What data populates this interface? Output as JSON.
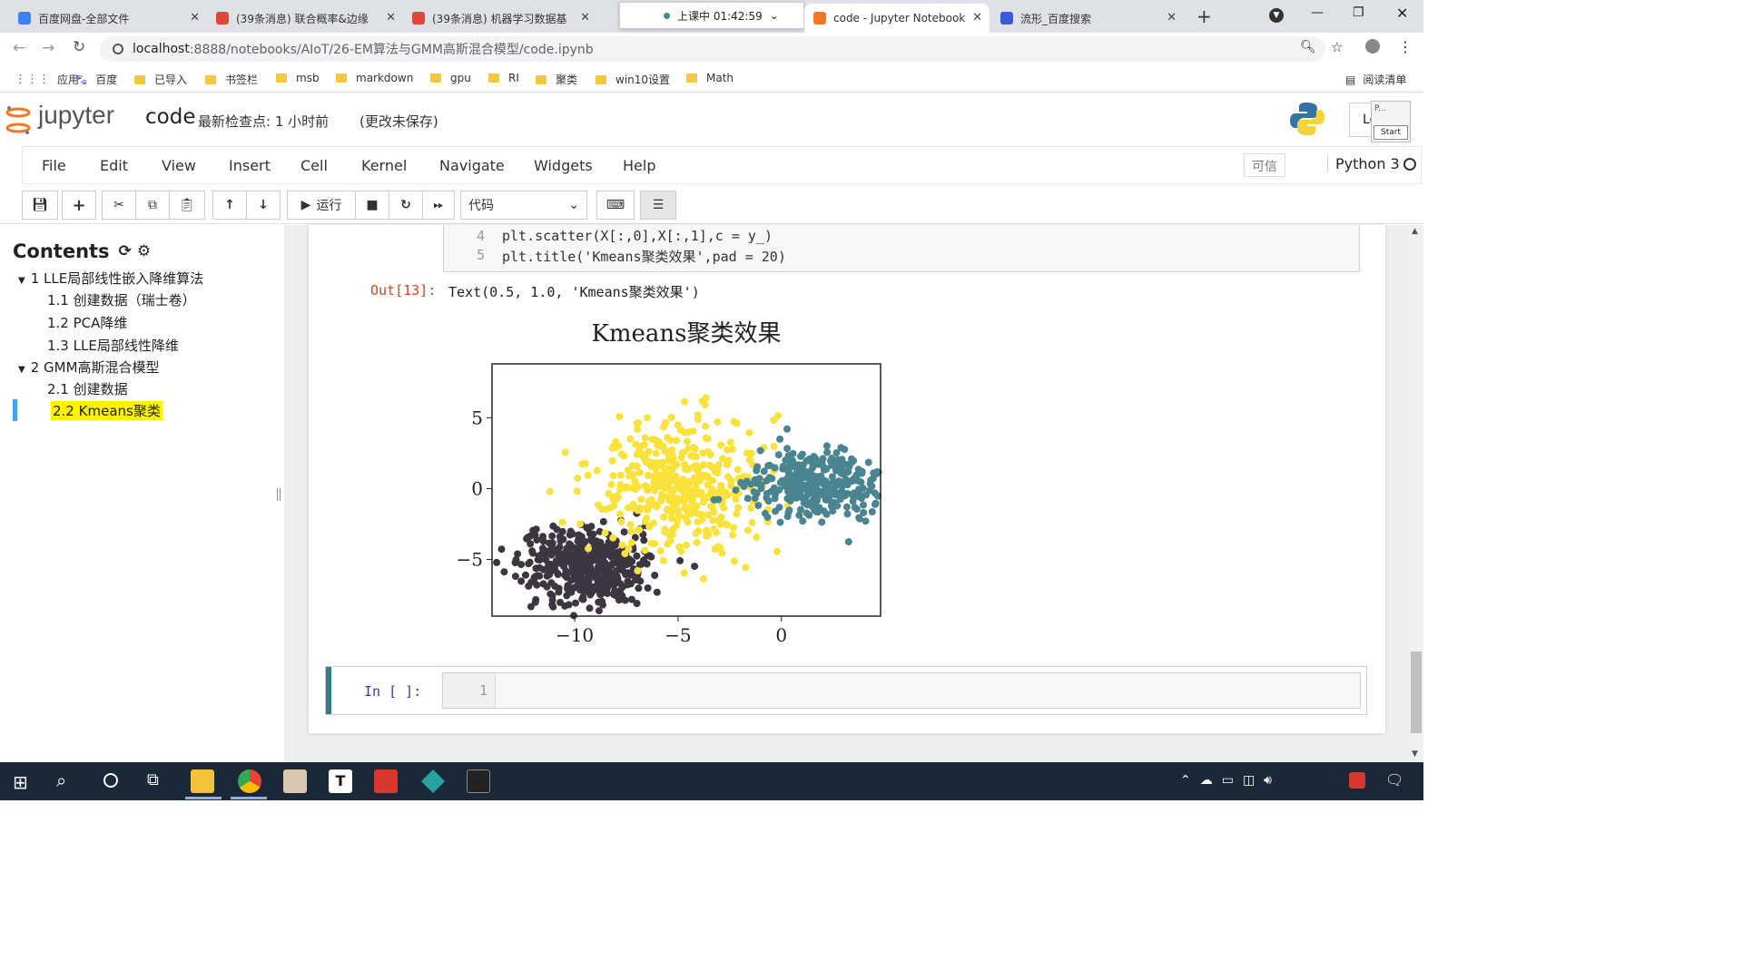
{
  "browser": {
    "tabs": [
      {
        "title": "百度网盘-全部文件",
        "color": "#3b82f6"
      },
      {
        "title": "(39条消息) 联合概率&边缘",
        "color": "#e0473a"
      },
      {
        "title": "(39条消息) 机器学习数据基",
        "color": "#e0473a"
      },
      {
        "title": "code - Jupyter Notebook",
        "color": "#f37726"
      },
      {
        "title": "流形_百度搜索",
        "color": "#3b5bdb"
      }
    ],
    "popup": "上课中 01:42:59",
    "url_host": "localhost",
    "url_path": ":8888/notebooks/AIoT/26-EM算法与GMM高斯混合模型/code.ipynb",
    "new_tab": "+",
    "bookmarks": [
      "应用",
      "百度",
      "已导入",
      "书签栏",
      "msb",
      "markdown",
      "gpu",
      "RI",
      "聚类",
      "win10设置",
      "Math"
    ],
    "reading_list": "阅读清单"
  },
  "jupyter": {
    "logo": "jupyter",
    "notebook_name": "code",
    "checkpoint": "最新检查点: 1 小时前",
    "unsaved": "(更改未保存)",
    "menu": [
      "File",
      "Edit",
      "View",
      "Insert",
      "Cell",
      "Kernel",
      "Navigate",
      "Widgets",
      "Help"
    ],
    "trusted": "可信",
    "kernel": "Python 3",
    "run_label": "运行",
    "cell_type": "代码",
    "logout_stub": "Lo",
    "start_label": "Start",
    "p_label": "P..."
  },
  "toc": {
    "title": "Contents",
    "items": [
      {
        "num": "1",
        "label": "LLE局部线性嵌入降维算法",
        "level": 1
      },
      {
        "num": "1.1",
        "label": "创建数据（瑞士卷）",
        "level": 2
      },
      {
        "num": "1.2",
        "label": "PCA降维",
        "level": 2
      },
      {
        "num": "1.3",
        "label": "LLE局部线性降维",
        "level": 2
      },
      {
        "num": "2",
        "label": "GMM高斯混合模型",
        "level": 1
      },
      {
        "num": "2.1",
        "label": "创建数据",
        "level": 2
      },
      {
        "num": "2.2",
        "label": "Kmeans聚类",
        "level": 2
      }
    ]
  },
  "cell": {
    "lines": [
      {
        "n": "4",
        "code": "plt.scatter(X[:,0],X[:,1],c = y_)"
      },
      {
        "n": "5",
        "code": "plt.title('Kmeans聚类效果',pad = 20)"
      }
    ],
    "out_prompt": "Out[13]:",
    "out_text": "Text(0.5, 1.0, 'Kmeans聚类效果')",
    "empty_prompt": "In [ ]:",
    "empty_line": "1"
  },
  "chart_data": {
    "type": "scatter",
    "title": "Kmeans聚类效果",
    "xlim": [
      -14,
      4.8
    ],
    "ylim": [
      -9,
      8.8
    ],
    "xticks": [
      "−10",
      "−5",
      "0"
    ],
    "yticks": [
      "5",
      "0",
      "−5"
    ],
    "xtick_values": [
      -10,
      -5,
      0
    ],
    "ytick_values": [
      5,
      0,
      -5
    ],
    "series": [
      {
        "color": "#3d3540",
        "center": [
          -9.5,
          -5.5
        ],
        "spread": [
          1.6,
          1.3
        ],
        "count": 420
      },
      {
        "color": "#f8e23b",
        "center": [
          -5,
          0.2
        ],
        "spread": [
          1.9,
          2.4
        ],
        "count": 420
      },
      {
        "color": "#4a8490",
        "center": [
          1.8,
          0.3
        ],
        "spread": [
          1.6,
          1.2
        ],
        "count": 320
      }
    ]
  },
  "taskbar": {
    "icons": [
      "windows-icon",
      "search-icon",
      "cortana-icon",
      "task-view-icon",
      "explorer-icon",
      "chrome-icon",
      "paint-icon",
      "typora-icon",
      "wps-pdf-icon",
      "video-player-icon",
      "terminal-icon"
    ]
  }
}
